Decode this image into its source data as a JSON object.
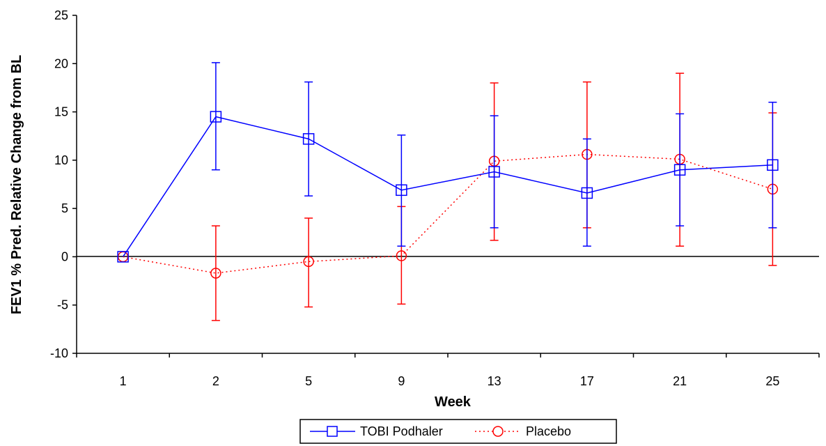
{
  "chart_data": {
    "type": "line",
    "title": "",
    "xlabel": "Week",
    "ylabel": "FEV1 % Pred. Relative Change from BL",
    "categories": [
      "1",
      "2",
      "5",
      "9",
      "13",
      "17",
      "21",
      "25"
    ],
    "yticks": [
      "25",
      "20",
      "15",
      "10",
      "5",
      "0",
      "-5",
      "-10"
    ],
    "ylim": [
      -10,
      25
    ],
    "grid": false,
    "legend_position": "bottom-center",
    "series": [
      {
        "name": "TOBI Podhaler",
        "color": "#0000ff",
        "marker": "square",
        "line_style": "solid",
        "values": [
          0,
          14.5,
          12.2,
          6.9,
          8.8,
          6.6,
          9.0,
          9.5
        ],
        "error_low": [
          0,
          9.0,
          6.3,
          1.1,
          3.0,
          1.1,
          3.2,
          3.0
        ],
        "error_high": [
          0,
          20.1,
          18.1,
          12.6,
          14.6,
          12.2,
          14.8,
          16.0
        ]
      },
      {
        "name": "Placebo",
        "color": "#ff0000",
        "marker": "circle",
        "line_style": "dotted",
        "values": [
          0,
          -1.7,
          -0.5,
          0.1,
          9.9,
          10.6,
          10.1,
          7.0
        ],
        "error_low": [
          0,
          -6.6,
          -5.2,
          -4.9,
          1.7,
          3.0,
          1.1,
          -0.9
        ],
        "error_high": [
          0,
          3.2,
          4.0,
          5.2,
          18.0,
          18.1,
          19.0,
          14.9
        ]
      }
    ]
  }
}
